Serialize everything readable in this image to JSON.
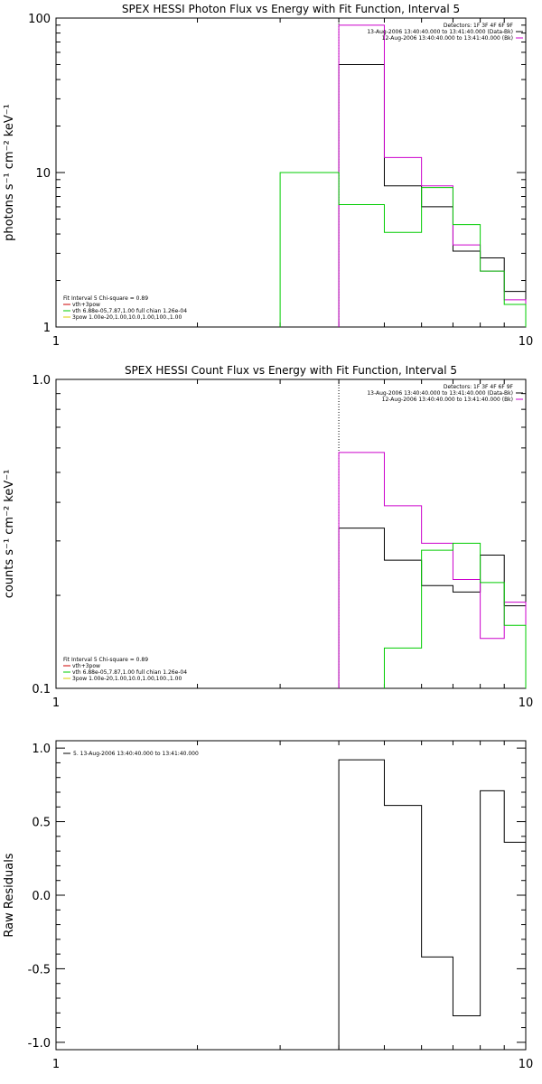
{
  "chart_data": [
    {
      "type": "line",
      "title": "SPEX HESSI Photon Flux vs Energy with Fit Function, Interval 5",
      "ylabel": "photons s⁻¹ cm⁻² keV⁻¹",
      "xscale": "log",
      "yscale": "log",
      "xlim": [
        1,
        10
      ],
      "ylim": [
        1,
        100
      ],
      "x_ticks": [
        "1",
        "10"
      ],
      "y_ticks": [
        "1",
        "10",
        "100"
      ],
      "vline_x": 4,
      "legend_top_right": [
        {
          "text": "Detectors: 1F 3F 4F 6F 9F",
          "color": "#000000"
        },
        {
          "text": "13-Aug-2006 13:40:40.000 to 13:41:40.000 (Data-Bk)",
          "color": "#000000"
        },
        {
          "text": "12-Aug-2006 13:40:40.000 to 13:41:40.000 (Bk)",
          "color": "#cc00cc"
        }
      ],
      "legend_bottom_left": [
        {
          "text": "Fit Interval 5   Chi-square = 0.89",
          "color": "#000000"
        },
        {
          "text": "vth+3pow",
          "color": "#cc0000"
        },
        {
          "text": "vth 6.88e-05,7.87,1.00   full chian 1.26e-04",
          "color": "#00cc00"
        },
        {
          "text": "3pow 1.00e-20,1.00,10.0,1.00,100.,1.00",
          "color": "#ddcc00"
        }
      ],
      "series": [
        {
          "color": "#000000",
          "edges": [
            4,
            5,
            6,
            7,
            8,
            9,
            10
          ],
          "values": [
            50,
            8.2,
            6.0,
            3.1,
            2.8,
            1.7
          ]
        },
        {
          "color": "#cc00cc",
          "edges": [
            4,
            5,
            6,
            7,
            8,
            9,
            10
          ],
          "values": [
            90,
            12.5,
            8.2,
            3.4,
            2.3,
            1.5
          ]
        },
        {
          "color": "#00cc00",
          "edges": [
            3,
            4,
            5,
            6,
            7,
            8,
            9,
            10
          ],
          "values": [
            10,
            6.2,
            4.1,
            8.0,
            4.6,
            2.3,
            1.4
          ]
        }
      ]
    },
    {
      "type": "line",
      "title": "SPEX HESSI Count Flux vs Energy with Fit Function, Interval 5",
      "ylabel": "counts s⁻¹ cm⁻² keV⁻¹",
      "xscale": "log",
      "yscale": "log",
      "xlim": [
        1,
        10
      ],
      "ylim": [
        0.1,
        1.0
      ],
      "x_ticks": [
        "1",
        "10"
      ],
      "y_ticks": [
        "0.1",
        "1.0"
      ],
      "vline_x": 4,
      "legend_top_right": [
        {
          "text": "Detectors: 1F 3F 4F 6F 9F",
          "color": "#000000"
        },
        {
          "text": "13-Aug-2006 13:40:40.000 to 13:41:40.000 (Data-Bk)",
          "color": "#000000"
        },
        {
          "text": "12-Aug-2006 13:40:40.000 to 13:41:40.000 (Bk)",
          "color": "#cc00cc"
        }
      ],
      "legend_bottom_left": [
        {
          "text": "Fit Interval 5   Chi-square = 0.89",
          "color": "#000000"
        },
        {
          "text": "vth+3pow",
          "color": "#cc0000"
        },
        {
          "text": "vth 6.88e-05,7.87,1.00   full chian 1.26e-04",
          "color": "#00cc00"
        },
        {
          "text": "3pow 1.00e-20,1.00,10.0,1.00,100.,1.00",
          "color": "#ddcc00"
        }
      ],
      "series": [
        {
          "color": "#000000",
          "edges": [
            4,
            5,
            6,
            7,
            8,
            9,
            10
          ],
          "values": [
            0.33,
            0.26,
            0.215,
            0.205,
            0.27,
            0.185
          ]
        },
        {
          "color": "#cc00cc",
          "edges": [
            4,
            5,
            6,
            7,
            8,
            9,
            10
          ],
          "values": [
            0.58,
            0.39,
            0.295,
            0.225,
            0.145,
            0.19
          ]
        },
        {
          "color": "#00cc00",
          "edges": [
            5,
            6,
            7,
            8,
            9,
            10
          ],
          "values": [
            0.135,
            0.28,
            0.295,
            0.22,
            0.16
          ]
        }
      ]
    },
    {
      "type": "line",
      "title": "",
      "ylabel": "Raw Residuals",
      "xscale": "log",
      "yscale": "linear",
      "xlim": [
        1,
        10
      ],
      "ylim": [
        -1.05,
        1.05
      ],
      "x_ticks": [
        "1",
        "10"
      ],
      "y_ticks": [
        "1.0",
        "0.5",
        "0.0",
        "-0.5",
        "-1.0"
      ],
      "legend_top_left": [
        {
          "text": "5. 13-Aug-2006 13:40:40.000 to 13:41:40.000",
          "color": "#000000"
        }
      ],
      "series": [
        {
          "color": "#000000",
          "edges": [
            4,
            5,
            6,
            7,
            8,
            9,
            10
          ],
          "values": [
            0.92,
            0.61,
            -0.42,
            -0.82,
            0.71,
            0.36
          ]
        }
      ]
    }
  ]
}
